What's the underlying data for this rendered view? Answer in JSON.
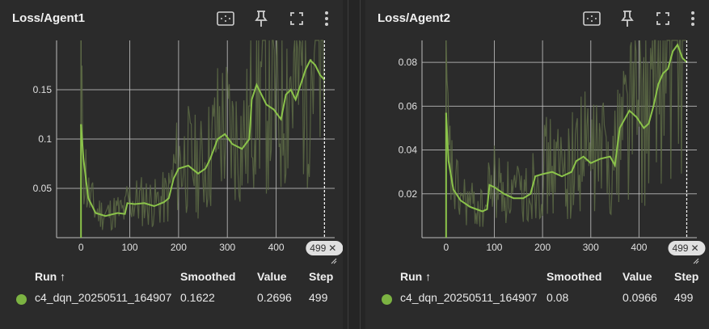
{
  "accent_color": "#8bc34a",
  "toolbar_icons": [
    "fit-domain-icon",
    "pin-icon",
    "fullscreen-icon",
    "more-vert-icon"
  ],
  "cards": [
    {
      "title": "Loss/Agent1",
      "step_badge": "499",
      "table": {
        "headers": {
          "run": "Run ↑",
          "smoothed": "Smoothed",
          "value": "Value",
          "step": "Step"
        },
        "row": {
          "run": "c4_dqn_20250511_164907",
          "smoothed": "0.1622",
          "value": "0.2696",
          "step": "499"
        }
      }
    },
    {
      "title": "Loss/Agent2",
      "step_badge": "499",
      "table": {
        "headers": {
          "run": "Run ↑",
          "smoothed": "Smoothed",
          "value": "Value",
          "step": "Step"
        },
        "row": {
          "run": "c4_dqn_20250511_164907",
          "smoothed": "0.08",
          "value": "0.0966",
          "step": "499"
        }
      }
    }
  ],
  "chart_data": [
    {
      "type": "line",
      "title": "Loss/Agent1",
      "xlim": [
        -50,
        520
      ],
      "ylim": [
        0,
        0.2
      ],
      "x_ticks": [
        "0",
        "100",
        "200",
        "300",
        "400"
      ],
      "y_ticks": [
        "0.05",
        "0.1",
        "0.15"
      ],
      "grid": true,
      "series": [
        {
          "name": "c4_dqn_20250511_164907",
          "color": "#8bc34a",
          "x": [
            0,
            5,
            15,
            30,
            50,
            75,
            90,
            95,
            110,
            130,
            150,
            170,
            180,
            190,
            200,
            220,
            240,
            255,
            265,
            280,
            295,
            310,
            330,
            345,
            350,
            360,
            380,
            395,
            410,
            420,
            430,
            440,
            450,
            460,
            470,
            480,
            490,
            499
          ],
          "values": [
            0.115,
            0.08,
            0.04,
            0.025,
            0.022,
            0.025,
            0.024,
            0.035,
            0.034,
            0.035,
            0.032,
            0.036,
            0.04,
            0.06,
            0.07,
            0.073,
            0.065,
            0.07,
            0.08,
            0.1,
            0.105,
            0.095,
            0.09,
            0.1,
            0.14,
            0.155,
            0.135,
            0.13,
            0.12,
            0.145,
            0.15,
            0.14,
            0.155,
            0.17,
            0.18,
            0.175,
            0.165,
            0.16
          ]
        }
      ]
    },
    {
      "type": "line",
      "title": "Loss/Agent2",
      "xlim": [
        -50,
        520
      ],
      "ylim": [
        0,
        0.09
      ],
      "x_ticks": [
        "0",
        "100",
        "200",
        "300",
        "400"
      ],
      "y_ticks": [
        "0.02",
        "0.04",
        "0.06",
        "0.08"
      ],
      "grid": true,
      "series": [
        {
          "name": "c4_dqn_20250511_164907",
          "color": "#8bc34a",
          "x": [
            0,
            5,
            15,
            30,
            50,
            75,
            85,
            90,
            100,
            120,
            140,
            160,
            175,
            185,
            200,
            220,
            240,
            260,
            270,
            285,
            300,
            320,
            340,
            350,
            360,
            380,
            395,
            410,
            420,
            430,
            440,
            450,
            460,
            470,
            480,
            490,
            499
          ],
          "values": [
            0.057,
            0.035,
            0.022,
            0.017,
            0.014,
            0.012,
            0.013,
            0.024,
            0.023,
            0.02,
            0.018,
            0.018,
            0.02,
            0.028,
            0.029,
            0.03,
            0.028,
            0.03,
            0.035,
            0.037,
            0.034,
            0.036,
            0.037,
            0.033,
            0.05,
            0.058,
            0.055,
            0.05,
            0.052,
            0.06,
            0.07,
            0.075,
            0.077,
            0.085,
            0.088,
            0.082,
            0.08
          ]
        }
      ]
    }
  ]
}
